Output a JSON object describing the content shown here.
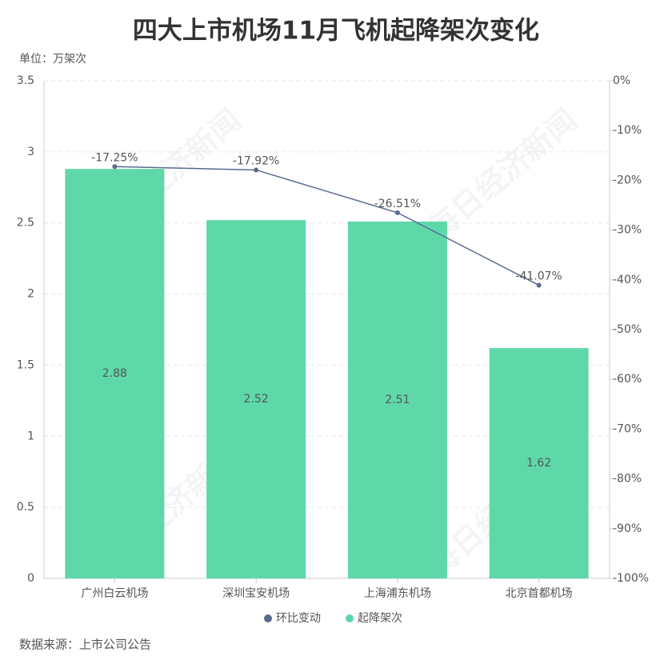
{
  "chart_data": {
    "type": "combo",
    "title": "四大上市机场11月飞机起降架次变化",
    "unit_label": "单位：万架次",
    "source": "数据来源：上市公司公告",
    "watermark": "每日经济新闻",
    "categories": [
      "广州白云机场",
      "深圳宝安机场",
      "上海浦东机场",
      "北京首都机场"
    ],
    "series": [
      {
        "name": "环比变动",
        "type": "line",
        "axis": "y2",
        "color": "#5a6b8f",
        "values": [
          -17.25,
          -17.92,
          -26.51,
          -41.07
        ],
        "value_labels": [
          "-17.25%",
          "-17.92%",
          "-26.51%",
          "-41.07%"
        ]
      },
      {
        "name": "起降架次",
        "type": "bar",
        "color": "#5ed8a9",
        "values": [
          2.88,
          2.52,
          2.51,
          1.62
        ]
      }
    ],
    "ylim": [
      0,
      3.5
    ],
    "yticks": [
      0,
      0.5,
      1,
      1.5,
      2,
      2.5,
      3,
      3.5
    ],
    "y2lim": [
      -100,
      0
    ],
    "y2ticks": [
      {
        "value": 0,
        "label": "0%"
      },
      {
        "value": -10,
        "label": "-10%"
      },
      {
        "value": -20,
        "label": "-20%"
      },
      {
        "value": -30,
        "label": "-30%"
      },
      {
        "value": -40,
        "label": "-40%"
      },
      {
        "value": -50,
        "label": "-50%"
      },
      {
        "value": -60,
        "label": "-60%"
      },
      {
        "value": -70,
        "label": "-70%"
      },
      {
        "value": -80,
        "label": "-80%"
      },
      {
        "value": -90,
        "label": "-90%"
      },
      {
        "value": -100,
        "label": "-100%"
      }
    ],
    "grid": true,
    "legend": "bottom"
  }
}
